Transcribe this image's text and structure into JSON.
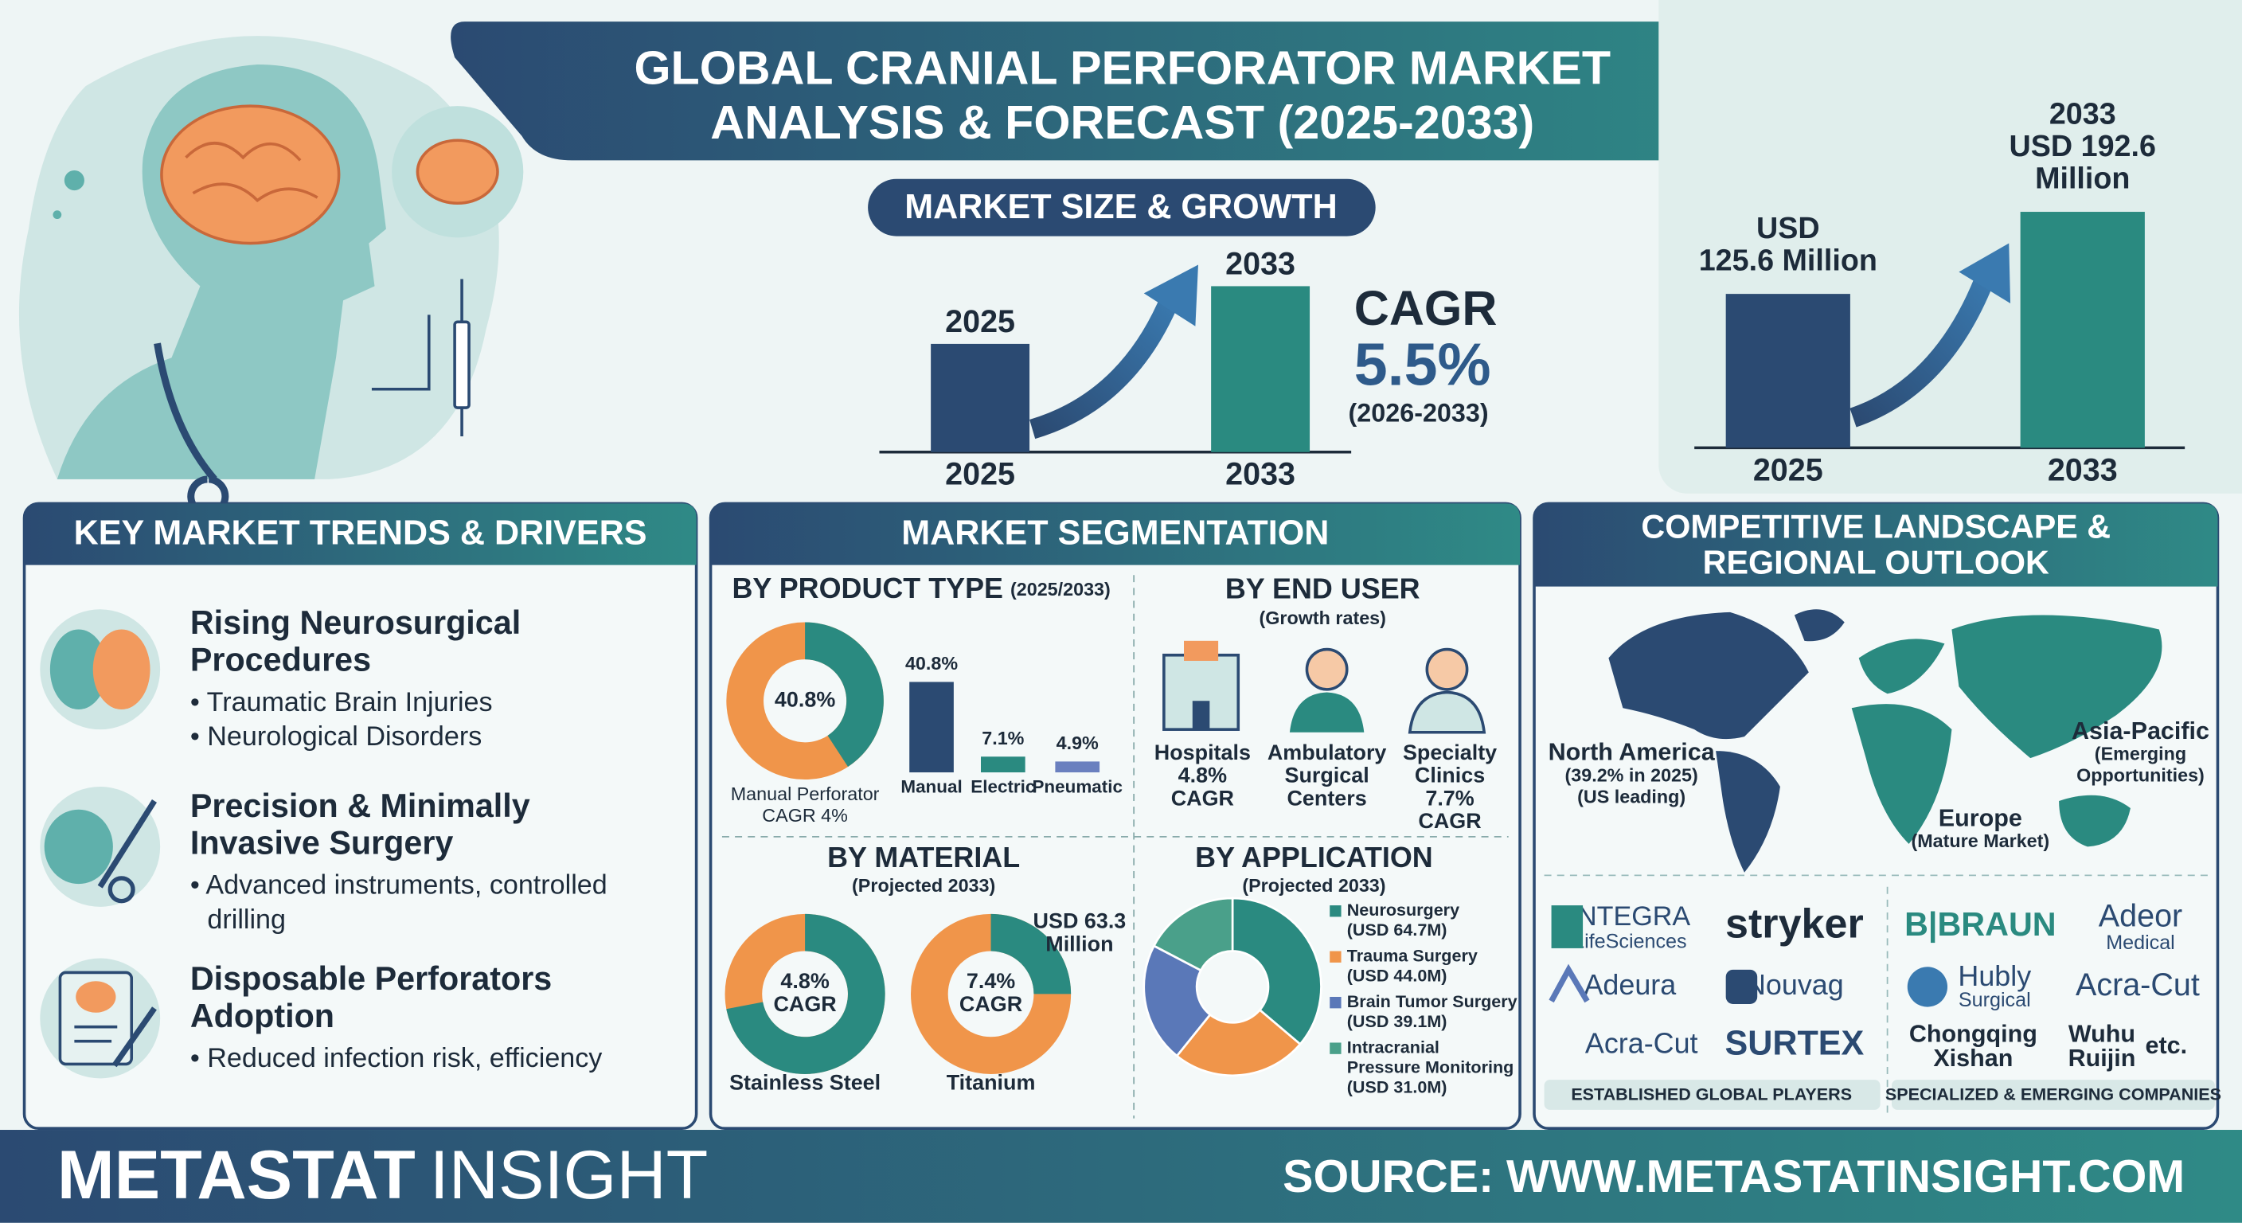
{
  "header": {
    "title_line1": "GLOBAL CRANIAL PERFORATOR MARKET",
    "title_line2": "ANALYSIS & FORECAST (2025-2033)"
  },
  "market_size": {
    "heading": "MARKET SIZE & GROWTH",
    "categories": [
      "2025",
      "2033"
    ],
    "values": [
      125.6,
      192.6
    ],
    "top_labels": [
      "2025",
      "2033"
    ],
    "value_labels": [
      [
        "USD",
        "125.6 Million"
      ],
      [
        "2033",
        "USD 192.6",
        "Million"
      ]
    ],
    "colors": [
      "#2b4a72",
      "#2a8a80"
    ],
    "cagr_label": "CAGR",
    "cagr_value": "5.5%",
    "cagr_period": "(2026-2033)"
  },
  "trends": {
    "heading": "KEY MARKET TRENDS & DRIVERS",
    "items": [
      {
        "title": [
          "Rising Neurosurgical",
          "Procedures"
        ],
        "bullets": [
          "• Traumatic Brain Injuries",
          "• Neurological Disorders"
        ]
      },
      {
        "title": [
          "Precision & Minimally",
          "Invasive Surgery"
        ],
        "bullets": [
          "• Advanced instruments, controlled",
          "drilling"
        ]
      },
      {
        "title": [
          "Disposable Perforators",
          "Adoption"
        ],
        "bullets": [
          "• Reduced infection risk, efficiency"
        ]
      }
    ]
  },
  "segmentation": {
    "heading": "MARKET SEGMENTATION",
    "product_type": {
      "title": "BY PRODUCT TYPE",
      "note": "(2025/2033)",
      "donut_value": 40.8,
      "donut_label": "40.8%",
      "donut_caption": [
        "Manual Perforator",
        "CAGR 4%"
      ],
      "categories": [
        "Manual",
        "Electric",
        "Pneumatic"
      ],
      "values": [
        40.8,
        7.1,
        4.9
      ],
      "value_labels": [
        "40.8%",
        "7.1%",
        "4.9%"
      ],
      "colors": [
        "#2b4a72",
        "#2a8a80",
        "#6a80bf"
      ]
    },
    "end_user": {
      "title": "BY END USER",
      "note": "(Growth rates)",
      "items": [
        [
          "Hospitals",
          "4.8%",
          "CAGR"
        ],
        [
          "Ambulatory",
          "Surgical",
          "Centers"
        ],
        [
          "Specialty",
          "Clinics",
          "7.7%",
          "CAGR"
        ]
      ]
    },
    "material": {
      "title": "BY MATERIAL",
      "note": "(Projected 2033)",
      "items": [
        {
          "name": "Stainless Steel",
          "center": [
            "4.8%",
            "CAGR"
          ]
        },
        {
          "name": "Titanium",
          "center": [
            "7.4%",
            "CAGR"
          ],
          "callout": [
            "USD 63.3",
            "Million"
          ]
        }
      ]
    },
    "application": {
      "title": "BY APPLICATION",
      "note": "(Projected 2033)",
      "series": [
        {
          "name": [
            "Neurosurgery"
          ],
          "value_label": "(USD 64.7M)",
          "value": 64.7,
          "color": "#2a8a80"
        },
        {
          "name": [
            "Trauma Surgery"
          ],
          "value_label": "(USD 44.0M)",
          "value": 44.0,
          "color": "#f0954a"
        },
        {
          "name": [
            "Brain Tumor Surgery"
          ],
          "value_label": "(USD 39.1M)",
          "value": 39.1,
          "color": "#5a78b8"
        },
        {
          "name": [
            "Intracranial",
            "Pressure Monitoring"
          ],
          "value_label": "(USD 31.0M)",
          "value": 31.0,
          "color": "#4aa08a"
        }
      ]
    }
  },
  "competitive": {
    "heading": [
      "COMPETITIVE LANDSCAPE &",
      "REGIONAL OUTLOOK"
    ],
    "regions": [
      {
        "name": "North America",
        "notes": [
          "(39.2% in 2025)",
          "(US leading)"
        ]
      },
      {
        "name": "Europe",
        "notes": [
          "(Mature Market)"
        ]
      },
      {
        "name": "Asia-Pacific",
        "notes": [
          "(Emerging",
          "Opportunities)"
        ]
      }
    ],
    "established": [
      "INTEGRA",
      "LifeSciences",
      "stryker",
      "Adeura",
      "Nouvag",
      "Acra-Cut",
      "SURTEX"
    ],
    "emerging": [
      "B|BRAUN",
      "Adeor",
      "Medical",
      "Hubly",
      "Surgical",
      "Acra-Cut",
      "Chongqing",
      "Xishan",
      "Wuhu",
      "Ruijin",
      "etc."
    ],
    "established_label": "ESTABLISHED GLOBAL PLAYERS",
    "emerging_label": "SPECIALIZED & EMERGING COMPANIES"
  },
  "footer": {
    "brand_bold": "METASTAT",
    "brand_light": "INSIGHT",
    "source": "SOURCE: WWW.METASTATINSIGHT.COM"
  }
}
